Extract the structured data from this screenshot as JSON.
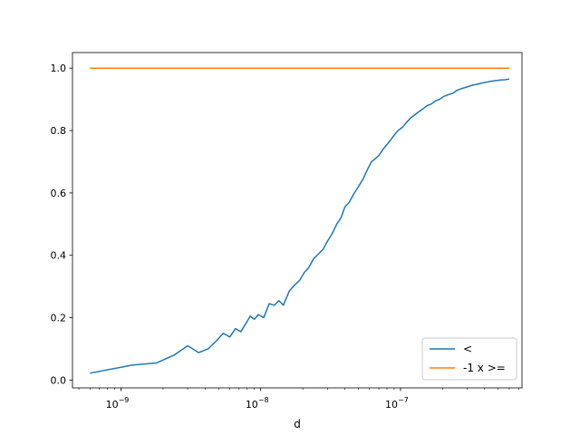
{
  "chart_data": {
    "type": "line",
    "title": "",
    "xlabel": "d",
    "ylabel": "",
    "xscale": "log",
    "xlim": [
      4.5e-10,
      7.4e-07
    ],
    "ylim": [
      -0.025,
      1.05
    ],
    "xticks": [
      {
        "value": 1e-09,
        "base": "10",
        "exp": "−9"
      },
      {
        "value": 1e-08,
        "base": "10",
        "exp": "−8"
      },
      {
        "value": 1e-07,
        "base": "10",
        "exp": "−7"
      }
    ],
    "yticks": [
      {
        "value": 0.0,
        "label": "0.0"
      },
      {
        "value": 0.2,
        "label": "0.2"
      },
      {
        "value": 0.4,
        "label": "0.4"
      },
      {
        "value": 0.6,
        "label": "0.6"
      },
      {
        "value": 0.8,
        "label": "0.8"
      },
      {
        "value": 1.0,
        "label": "1.0"
      }
    ],
    "grid": false,
    "legend_position": "bottom-right",
    "series": [
      {
        "name": "<",
        "color": "#1f77b4",
        "x": [
          6e-10,
          1.2e-09,
          1.8e-09,
          2.4e-09,
          3e-09,
          3.6e-09,
          4.2e-09,
          4.8e-09,
          5.4e-09,
          6e-09,
          6.6e-09,
          7.2e-09,
          7.8e-09,
          8.4e-09,
          9e-09,
          9.6e-09,
          1.05e-08,
          1.15e-08,
          1.25e-08,
          1.35e-08,
          1.45e-08,
          1.6e-08,
          1.75e-08,
          1.9e-08,
          2.05e-08,
          2.2e-08,
          2.4e-08,
          2.6e-08,
          2.8e-08,
          3e-08,
          3.25e-08,
          3.5e-08,
          3.75e-08,
          4e-08,
          4.3e-08,
          4.6e-08,
          5e-08,
          5.4e-08,
          5.8e-08,
          6.2e-08,
          6.6e-08,
          7e-08,
          7.5e-08,
          8e-08,
          8.5e-08,
          9e-08,
          9.6e-08,
          1.03e-07,
          1.1e-07,
          1.18e-07,
          1.26e-07,
          1.35e-07,
          1.45e-07,
          1.55e-07,
          1.66e-07,
          1.78e-07,
          1.9e-07,
          2.05e-07,
          2.2e-07,
          2.38e-07,
          2.56e-07,
          2.76e-07,
          3e-07,
          3.25e-07,
          3.5e-07,
          3.8e-07,
          4.1e-07,
          4.45e-07,
          4.8e-07,
          5.2e-07,
          5.6e-07,
          6e-07
        ],
        "y": [
          0.022,
          0.048,
          0.055,
          0.08,
          0.11,
          0.088,
          0.1,
          0.125,
          0.15,
          0.138,
          0.165,
          0.155,
          0.18,
          0.205,
          0.195,
          0.21,
          0.2,
          0.245,
          0.24,
          0.255,
          0.24,
          0.285,
          0.305,
          0.32,
          0.345,
          0.36,
          0.39,
          0.405,
          0.42,
          0.445,
          0.47,
          0.5,
          0.52,
          0.555,
          0.57,
          0.595,
          0.62,
          0.645,
          0.675,
          0.7,
          0.71,
          0.72,
          0.74,
          0.755,
          0.77,
          0.785,
          0.8,
          0.81,
          0.825,
          0.84,
          0.85,
          0.86,
          0.87,
          0.88,
          0.885,
          0.895,
          0.9,
          0.91,
          0.915,
          0.92,
          0.93,
          0.935,
          0.94,
          0.945,
          0.948,
          0.952,
          0.955,
          0.958,
          0.96,
          0.962,
          0.963,
          0.965
        ]
      },
      {
        "name": "-1 x >=",
        "color": "#ff7f0e",
        "x": [
          6e-10,
          6e-07
        ],
        "y": [
          1.0,
          1.0
        ]
      }
    ]
  }
}
